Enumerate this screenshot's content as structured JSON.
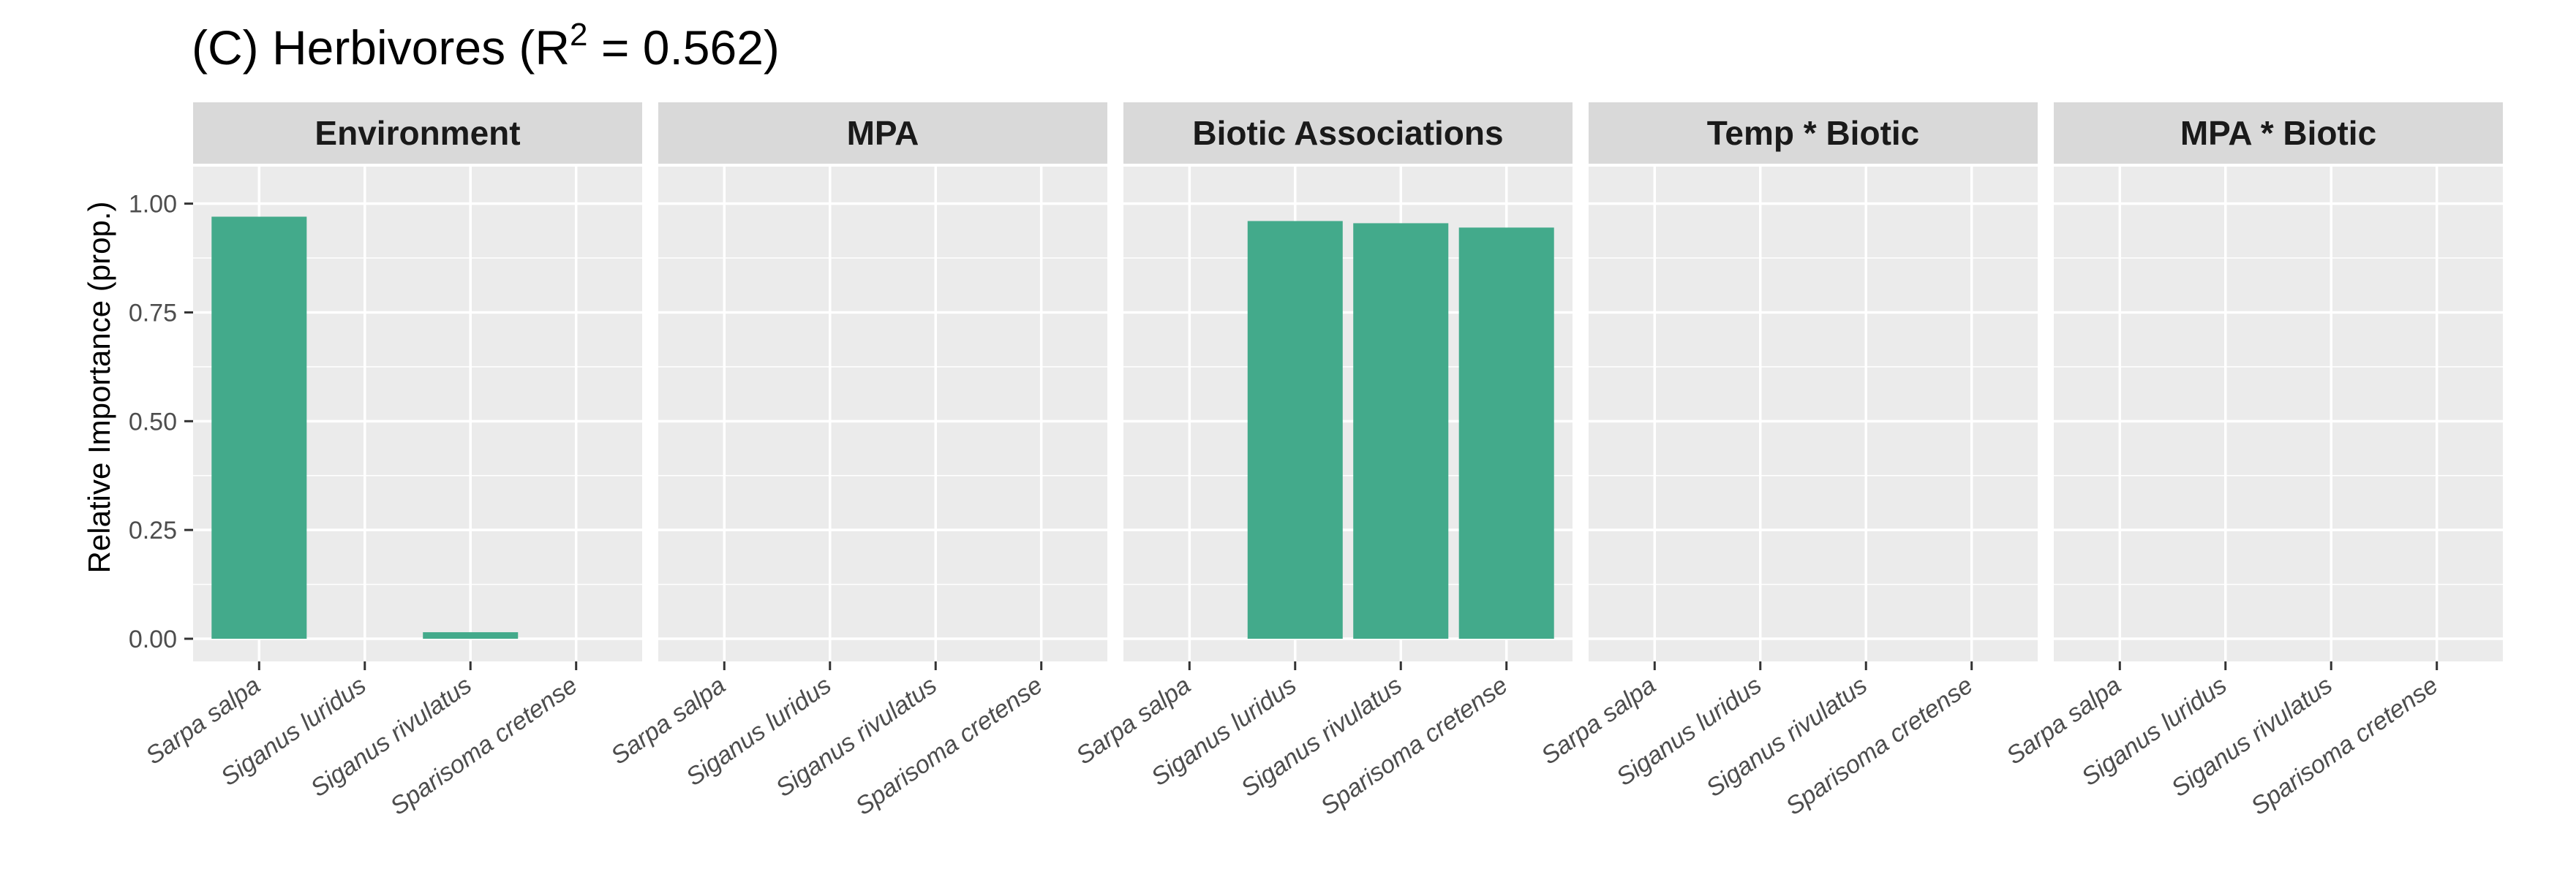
{
  "chart_data": {
    "type": "bar",
    "title": "(C) Herbivores (R",
    "title_superscript": "2",
    "title_suffix": " = 0.562)",
    "ylabel": "Relative Importance (prop.)",
    "xlabel": "",
    "ylim": [
      0,
      1.08
    ],
    "yticks": [
      "0.00",
      "0.25",
      "0.50",
      "0.75",
      "1.00"
    ],
    "ytick_values": [
      0,
      0.25,
      0.5,
      0.75,
      1.0
    ],
    "categories": [
      "Sarpa salpa",
      "Siganus luridus",
      "Siganus rivulatus",
      "Sparisoma cretense"
    ],
    "facets": [
      {
        "name": "Environment",
        "values": [
          0.97,
          0,
          0.015,
          0
        ]
      },
      {
        "name": "MPA",
        "values": [
          0,
          0,
          0,
          0
        ]
      },
      {
        "name": "Biotic Associations",
        "values": [
          0,
          0.96,
          0.955,
          0.945
        ]
      },
      {
        "name": "Temp * Biotic",
        "values": [
          0,
          0,
          0,
          0
        ]
      },
      {
        "name": "MPA * Biotic",
        "values": [
          0,
          0,
          0,
          0
        ]
      }
    ],
    "grid": true,
    "colors": {
      "bar": "#43AA8B",
      "panel_background": "#EBEBEB",
      "strip_background": "#D9D9D9",
      "grid_line": "#FFFFFF",
      "axis_text": "#4D4D4D",
      "tick": "#333333"
    }
  }
}
